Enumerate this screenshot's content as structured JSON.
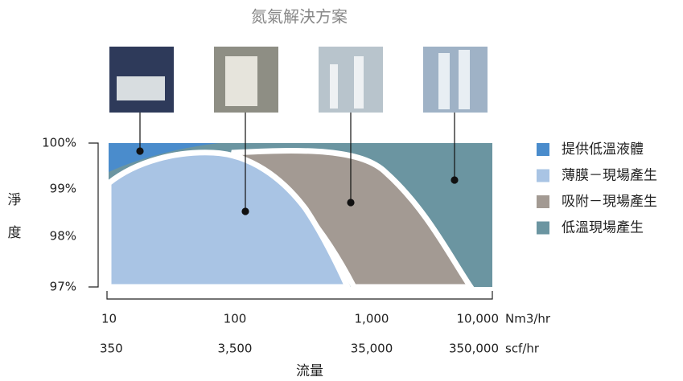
{
  "title": "氮氣解決方案",
  "y_axis": {
    "label": [
      "淨",
      "度"
    ],
    "ticks": [
      "100%",
      "99%",
      "98%",
      "97%"
    ]
  },
  "x_axis": {
    "label": "流量",
    "rows": [
      {
        "ticks": [
          "10",
          "100",
          "1,000",
          "10,000"
        ],
        "unit": "Nm3/hr"
      },
      {
        "ticks": [
          "350",
          "3,500",
          "35,000",
          "350,000"
        ],
        "unit": "scf/hr"
      }
    ]
  },
  "legend": [
    {
      "label": "提供低溫液體",
      "color": "#4a8ccc"
    },
    {
      "label": "薄膜－現場產生",
      "color": "#a9c4e4"
    },
    {
      "label": "吸附－現場產生",
      "color": "#a39a93"
    },
    {
      "label": "低溫現場產生",
      "color": "#6b95a1"
    }
  ]
}
